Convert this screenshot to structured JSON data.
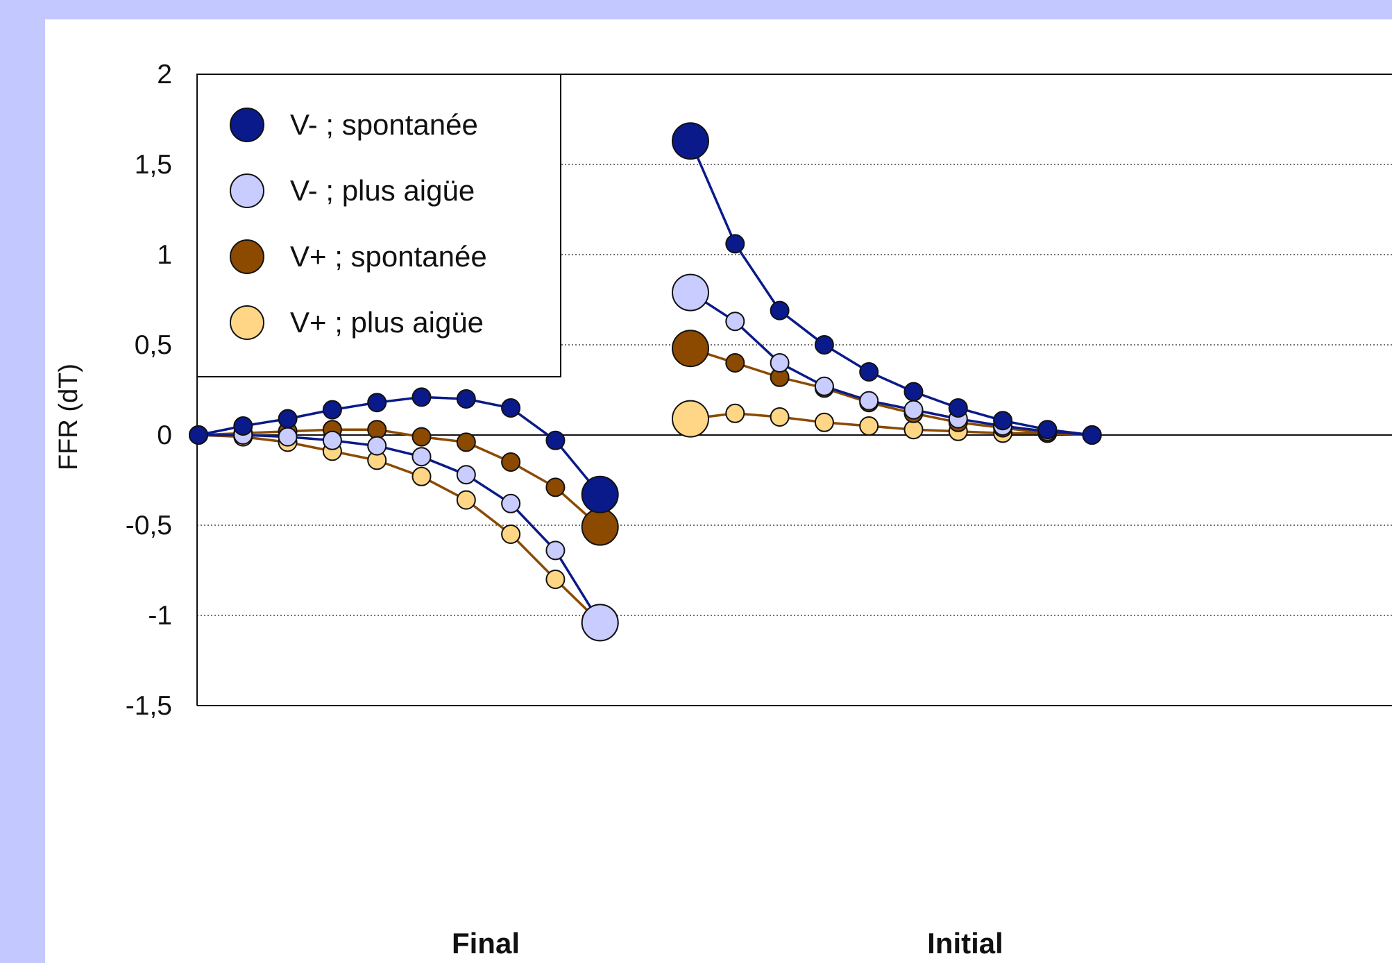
{
  "chart_data": {
    "type": "line",
    "ylabel": "FFR (dT)",
    "ylim": [
      -1.5,
      2
    ],
    "yticks": [
      2,
      1.5,
      1,
      0.5,
      0,
      -0.5,
      -1,
      -1.5
    ],
    "ytick_labels": [
      "2",
      "1,5",
      "1",
      "0,5",
      "0",
      "-0,5",
      "-1",
      "-1,5"
    ],
    "grid": "horizontal dotted",
    "legend_position": "top-left",
    "groups": [
      "Final",
      "Initial"
    ],
    "series": [
      {
        "name": "V- ; spontanée",
        "color": "#0a1a8a",
        "line_color": "#0a1a8a",
        "final": [
          0,
          0.05,
          0.09,
          0.14,
          0.18,
          0.21,
          0.2,
          0.15,
          -0.03,
          -0.33
        ],
        "initial": [
          1.63,
          1.06,
          0.69,
          0.5,
          0.35,
          0.24,
          0.15,
          0.08,
          0.03,
          0
        ]
      },
      {
        "name": "V- ; plus aigüe",
        "color": "#c8ccff",
        "line_color": "#0a1a8a",
        "final": [
          0,
          0,
          -0.01,
          -0.03,
          -0.06,
          -0.12,
          -0.22,
          -0.38,
          -0.64,
          -1.04
        ],
        "initial": [
          0.79,
          0.63,
          0.4,
          0.27,
          0.19,
          0.14,
          0.09,
          0.05,
          0.02,
          0
        ]
      },
      {
        "name": "V+ ; spontanée",
        "color": "#8b4a00",
        "line_color": "#8b4a00",
        "final": [
          0,
          0.01,
          0.02,
          0.03,
          0.03,
          -0.01,
          -0.04,
          -0.15,
          -0.29,
          -0.51
        ],
        "initial": [
          0.48,
          0.4,
          0.32,
          0.26,
          0.18,
          0.12,
          0.07,
          0.04,
          0.01,
          0
        ]
      },
      {
        "name": "V+ ; plus aigüe",
        "color": "#ffd685",
        "line_color": "#8b4a00",
        "final": [
          0,
          -0.01,
          -0.04,
          -0.09,
          -0.14,
          -0.23,
          -0.36,
          -0.55,
          -0.8,
          -1.04
        ],
        "initial": [
          0.09,
          0.12,
          0.1,
          0.07,
          0.05,
          0.03,
          0.02,
          0.01,
          0.01,
          0
        ]
      }
    ]
  }
}
